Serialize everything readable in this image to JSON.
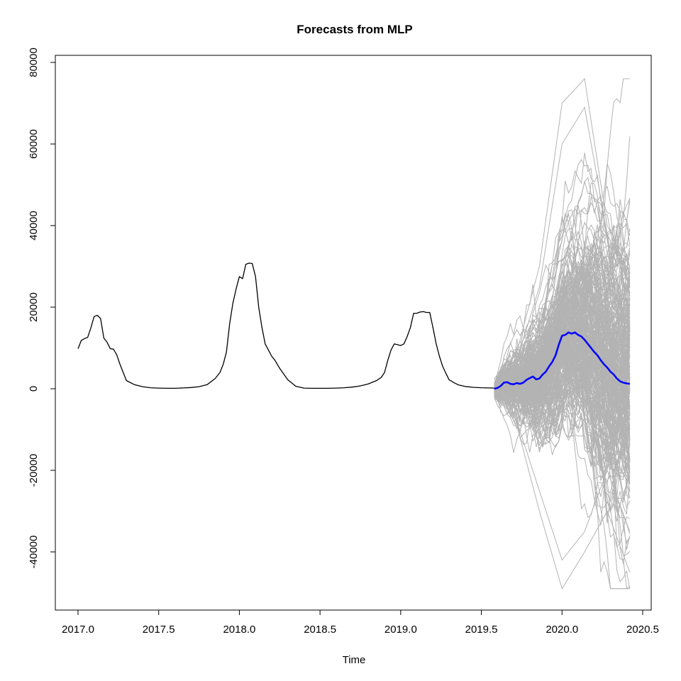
{
  "chart_data": {
    "type": "line",
    "title": "Forecasts from MLP",
    "xlabel": "Time",
    "ylabel": "",
    "xlim": [
      2017.0,
      2020.5
    ],
    "ylim": [
      -50000,
      80000
    ],
    "x_ticks": [
      2017.0,
      2017.5,
      2018.0,
      2018.5,
      2019.0,
      2019.5,
      2020.0,
      2020.5
    ],
    "x_tick_labels": [
      "2017.0",
      "2017.5",
      "2018.0",
      "2018.5",
      "2019.0",
      "2019.5",
      "2020.0",
      "2020.5"
    ],
    "y_ticks": [
      -40000,
      -20000,
      0,
      20000,
      40000,
      60000,
      80000
    ],
    "y_tick_labels": [
      "-40000",
      "-20000",
      "0",
      "20000",
      "40000",
      "60000",
      "80000"
    ],
    "grid": false,
    "legend": "none",
    "colors": {
      "observed": "#000000",
      "mean_forecast": "#0000ff",
      "simulated_paths": "#b3b3b3"
    },
    "series": [
      {
        "role": "observed",
        "x": [
          2017.0,
          2017.02,
          2017.04,
          2017.06,
          2017.08,
          2017.1,
          2017.12,
          2017.14,
          2017.16,
          2017.18,
          2017.2,
          2017.22,
          2017.24,
          2017.26,
          2017.3,
          2017.35,
          2017.4,
          2017.45,
          2017.5,
          2017.55,
          2017.6,
          2017.65,
          2017.7,
          2017.75,
          2017.8,
          2017.85,
          2017.88,
          2017.9,
          2017.92,
          2017.94,
          2017.96,
          2017.98,
          2018.0,
          2018.02,
          2018.04,
          2018.06,
          2018.08,
          2018.1,
          2018.12,
          2018.14,
          2018.16,
          2018.18,
          2018.2,
          2018.22,
          2018.25,
          2018.3,
          2018.35,
          2018.4,
          2018.45,
          2018.5,
          2018.55,
          2018.6,
          2018.65,
          2018.7,
          2018.75,
          2018.8,
          2018.85,
          2018.88,
          2018.9,
          2018.92,
          2018.94,
          2018.96,
          2018.98,
          2019.0,
          2019.02,
          2019.04,
          2019.06,
          2019.08,
          2019.1,
          2019.12,
          2019.14,
          2019.16,
          2019.18,
          2019.2,
          2019.22,
          2019.24,
          2019.26,
          2019.28,
          2019.3,
          2019.33,
          2019.36,
          2019.4,
          2019.45,
          2019.5,
          2019.55,
          2019.58
        ],
        "y": [
          9800,
          11800,
          12300,
          12600,
          15000,
          17700,
          18000,
          17200,
          12400,
          11400,
          9800,
          9700,
          8300,
          6000,
          2000,
          1000,
          500,
          250,
          150,
          100,
          100,
          200,
          300,
          500,
          1000,
          2500,
          4000,
          6000,
          9000,
          16000,
          21000,
          24500,
          27500,
          27000,
          30500,
          30800,
          30700,
          27500,
          20000,
          15000,
          11000,
          9500,
          8000,
          7000,
          5000,
          2200,
          600,
          150,
          100,
          100,
          100,
          150,
          250,
          400,
          700,
          1200,
          2000,
          2800,
          4000,
          7000,
          9500,
          11000,
          10800,
          10600,
          11000,
          12800,
          15000,
          18500,
          18500,
          18800,
          18900,
          18700,
          18700,
          15000,
          11000,
          8000,
          5500,
          3800,
          2200,
          1500,
          900,
          550,
          350,
          250,
          200,
          150
        ]
      },
      {
        "role": "mean_forecast",
        "x": [
          2019.58,
          2019.6,
          2019.62,
          2019.64,
          2019.66,
          2019.68,
          2019.7,
          2019.72,
          2019.74,
          2019.76,
          2019.78,
          2019.8,
          2019.82,
          2019.84,
          2019.86,
          2019.88,
          2019.9,
          2019.92,
          2019.94,
          2019.96,
          2019.98,
          2020.0,
          2020.02,
          2020.04,
          2020.06,
          2020.08,
          2020.1,
          2020.12,
          2020.14,
          2020.16,
          2020.18,
          2020.2,
          2020.22,
          2020.24,
          2020.26,
          2020.28,
          2020.3,
          2020.32,
          2020.34,
          2020.36,
          2020.38,
          2020.4,
          2020.42
        ],
        "y": [
          0,
          200,
          700,
          1500,
          1600,
          1200,
          1100,
          1400,
          1200,
          1500,
          2200,
          2600,
          3000,
          2300,
          2500,
          3500,
          4200,
          5500,
          6600,
          8200,
          10800,
          13000,
          13200,
          13800,
          13500,
          13800,
          13200,
          12800,
          12000,
          11000,
          10000,
          9000,
          8200,
          7000,
          6000,
          5200,
          4200,
          3500,
          2500,
          1800,
          1500,
          1300,
          1200
        ]
      }
    ],
    "simulation": {
      "description": "",
      "x_start": 2019.58,
      "x_end": 2020.42,
      "path_count": 250,
      "y_min": -49000,
      "y_max": 76000
    }
  }
}
